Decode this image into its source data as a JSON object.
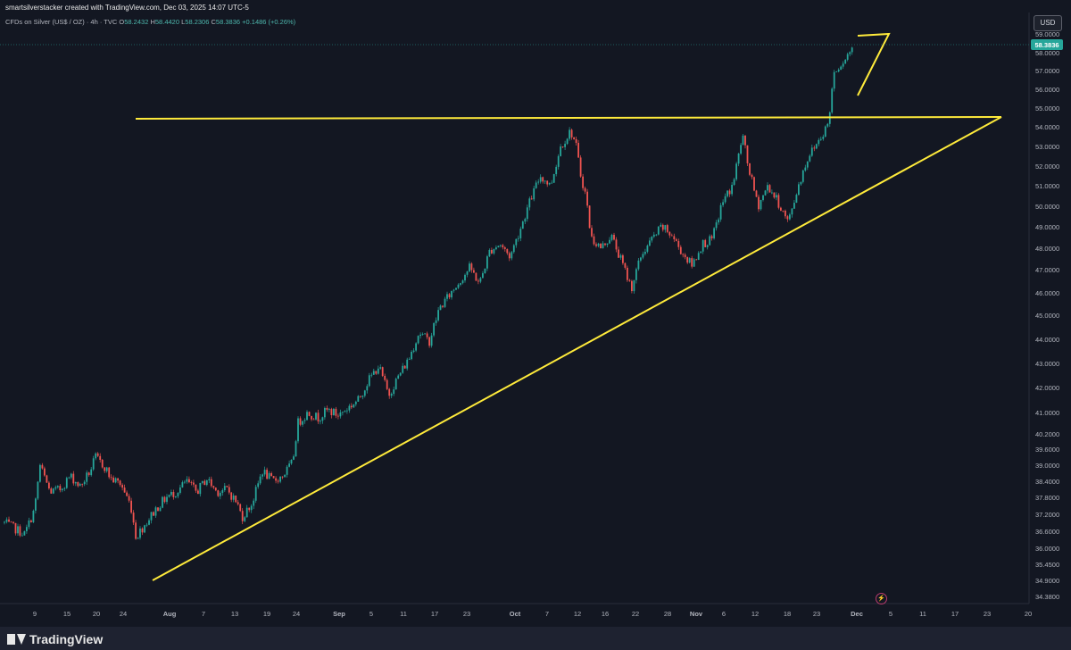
{
  "header": {
    "attribution": "smartsilverstacker created with TradingView.com, Dec 03, 2025 14:07 UTC-5",
    "symbol": "CFDs on Silver (US$ / OZ) · 4h · TVC",
    "o_label": "O",
    "o": "58.2432",
    "h_label": "H",
    "h": "58.4420",
    "l_label": "L",
    "l": "58.2306",
    "c_label": "C",
    "c": "58.3836",
    "change": "+0.1486 (+0.26%)"
  },
  "currency": "USD",
  "footer": {
    "brand": "TradingView"
  },
  "colors": {
    "background": "#131722",
    "up": "#26a69a",
    "down": "#ef5350",
    "trendline": "#ffeb3b",
    "last_price_badge": "#26a69a"
  },
  "chart_data": {
    "type": "candlestick",
    "title": "",
    "xlabel": "",
    "ylabel": "",
    "timeframe": "4h",
    "last_price": "58.3836",
    "y_ticks": [
      "59.0000",
      "58.0000",
      "57.0000",
      "56.0000",
      "55.0000",
      "54.0000",
      "53.0000",
      "52.0000",
      "51.0000",
      "50.0000",
      "49.0000",
      "48.0000",
      "47.0000",
      "46.0000",
      "45.0000",
      "44.0000",
      "43.0000",
      "42.0000",
      "41.0000",
      "40.2000",
      "39.6000",
      "39.0000",
      "38.4000",
      "37.8000",
      "37.2000",
      "36.6000",
      "36.0000",
      "35.4500",
      "34.9000",
      "34.3800"
    ],
    "x_ticks": [
      "9",
      "15",
      "20",
      "24",
      "Aug",
      "7",
      "13",
      "19",
      "24",
      "Sep",
      "5",
      "11",
      "17",
      "23",
      "Oct",
      "7",
      "12",
      "16",
      "22",
      "28",
      "Nov",
      "6",
      "12",
      "18",
      "23",
      "Dec",
      "5",
      "11",
      "17",
      "23",
      "20"
    ],
    "price_path_day_close": [
      [
        0,
        36.9
      ],
      [
        2,
        36.7
      ],
      [
        4,
        36.5
      ],
      [
        6,
        37.4
      ],
      [
        7,
        39.0
      ],
      [
        9,
        38.0
      ],
      [
        11,
        38.1
      ],
      [
        13,
        38.6
      ],
      [
        15,
        38.2
      ],
      [
        17,
        38.8
      ],
      [
        18,
        39.3
      ],
      [
        20,
        38.9
      ],
      [
        21,
        38.5
      ],
      [
        23,
        38.3
      ],
      [
        25,
        37.5
      ],
      [
        26,
        36.4
      ],
      [
        28,
        36.9
      ],
      [
        30,
        37.4
      ],
      [
        32,
        37.8
      ],
      [
        34,
        38.0
      ],
      [
        36,
        38.4
      ],
      [
        38,
        38.0
      ],
      [
        40,
        38.5
      ],
      [
        42,
        38.0
      ],
      [
        44,
        38.1
      ],
      [
        46,
        37.6
      ],
      [
        47,
        37.1
      ],
      [
        49,
        37.6
      ],
      [
        51,
        38.8
      ],
      [
        53,
        38.4
      ],
      [
        55,
        38.6
      ],
      [
        57,
        39.1
      ],
      [
        58,
        40.6
      ],
      [
        60,
        41.0
      ],
      [
        62,
        40.8
      ],
      [
        64,
        41.1
      ],
      [
        66,
        40.9
      ],
      [
        68,
        41.2
      ],
      [
        70,
        41.5
      ],
      [
        72,
        42.3
      ],
      [
        74,
        42.9
      ],
      [
        76,
        41.7
      ],
      [
        78,
        42.5
      ],
      [
        80,
        43.2
      ],
      [
        82,
        44.3
      ],
      [
        84,
        43.9
      ],
      [
        86,
        45.3
      ],
      [
        88,
        45.9
      ],
      [
        90,
        46.5
      ],
      [
        92,
        47.1
      ],
      [
        94,
        46.4
      ],
      [
        96,
        47.9
      ],
      [
        98,
        48.2
      ],
      [
        100,
        47.6
      ],
      [
        102,
        48.9
      ],
      [
        104,
        50.3
      ],
      [
        106,
        51.5
      ],
      [
        108,
        51.0
      ],
      [
        110,
        53.0
      ],
      [
        112,
        53.8
      ],
      [
        113,
        53.1
      ],
      [
        114,
        51.5
      ],
      [
        115,
        50.5
      ],
      [
        116,
        48.5
      ],
      [
        118,
        48.0
      ],
      [
        120,
        48.6
      ],
      [
        122,
        47.4
      ],
      [
        124,
        46.2
      ],
      [
        126,
        47.7
      ],
      [
        128,
        48.4
      ],
      [
        130,
        49.0
      ],
      [
        132,
        48.6
      ],
      [
        134,
        47.8
      ],
      [
        136,
        47.2
      ],
      [
        138,
        48.2
      ],
      [
        140,
        48.4
      ],
      [
        142,
        50.2
      ],
      [
        144,
        51.0
      ],
      [
        146,
        53.6
      ],
      [
        147,
        52.1
      ],
      [
        149,
        50.0
      ],
      [
        151,
        51.0
      ],
      [
        153,
        50.2
      ],
      [
        155,
        49.2
      ],
      [
        157,
        51.0
      ],
      [
        159,
        52.5
      ],
      [
        161,
        53.3
      ],
      [
        163,
        54.2
      ],
      [
        164,
        56.9
      ],
      [
        166,
        57.6
      ],
      [
        168,
        58.38
      ]
    ],
    "price_high": 58.9,
    "price_low": 35.4,
    "drawings": [
      {
        "type": "horizontal_resistance",
        "price": 54.4
      },
      {
        "type": "rising_trendline",
        "from": [
          27,
          35.0
        ],
        "to": [
          188,
          54.5
        ]
      },
      {
        "type": "rising_wedge",
        "points": [
          [
            164,
            58.85
          ],
          [
            170,
            58.95
          ],
          [
            164,
            55.6
          ]
        ]
      }
    ],
    "grid": false,
    "axis_position": "right"
  }
}
